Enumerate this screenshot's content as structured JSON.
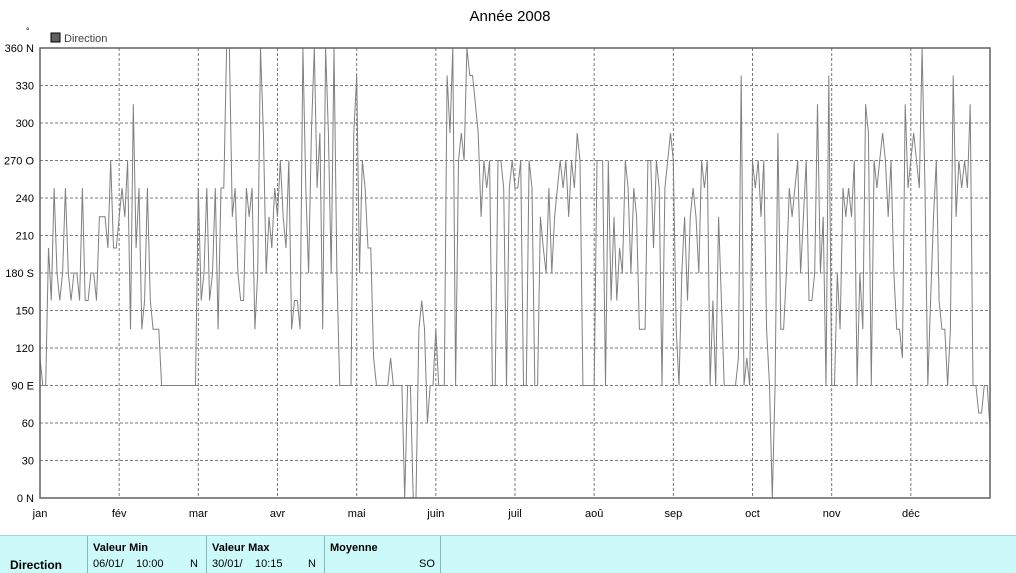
{
  "chart_data": {
    "type": "line",
    "title": "Année 2008",
    "legend": "Direction",
    "legend_placement": "top-left",
    "grid": true,
    "ylim": [
      0,
      360
    ],
    "y_ticks": [
      {
        "value": 0,
        "label": "0 N"
      },
      {
        "value": 30,
        "label": "30"
      },
      {
        "value": 60,
        "label": "60"
      },
      {
        "value": 90,
        "label": "90 E"
      },
      {
        "value": 120,
        "label": "120"
      },
      {
        "value": 150,
        "label": "150"
      },
      {
        "value": 180,
        "label": "180 S"
      },
      {
        "value": 210,
        "label": "210"
      },
      {
        "value": 240,
        "label": "240"
      },
      {
        "value": 270,
        "label": "270 O"
      },
      {
        "value": 300,
        "label": "300"
      },
      {
        "value": 330,
        "label": "330"
      },
      {
        "value": 360,
        "label": "360 N"
      }
    ],
    "x_ticks": [
      "jan",
      "fév",
      "mar",
      "avr",
      "mai",
      "juin",
      "juil",
      "aoû",
      "sep",
      "oct",
      "nov",
      "déc"
    ],
    "series": [
      {
        "name": "Direction",
        "color": "#808080",
        "values": [
          112,
          90,
          90,
          200,
          158,
          248,
          180,
          158,
          180,
          248,
          180,
          158,
          180,
          180,
          158,
          248,
          158,
          158,
          180,
          180,
          158,
          225,
          225,
          225,
          200,
          270,
          200,
          200,
          225,
          248,
          225,
          270,
          135,
          315,
          200,
          248,
          135,
          158,
          248,
          158,
          135,
          135,
          135,
          90,
          90,
          90,
          90,
          90,
          90,
          90,
          90,
          90,
          90,
          90,
          90,
          90,
          248,
          158,
          180,
          248,
          158,
          180,
          248,
          135,
          248,
          248,
          360,
          360,
          225,
          248,
          180,
          158,
          158,
          248,
          225,
          248,
          135,
          180,
          360,
          292,
          180,
          225,
          200,
          248,
          225,
          270,
          225,
          200,
          270,
          135,
          158,
          158,
          135,
          360,
          248,
          180,
          292,
          360,
          248,
          292,
          135,
          360,
          292,
          180,
          360,
          180,
          90,
          90,
          90,
          90,
          90,
          292,
          338,
          180,
          270,
          248,
          200,
          200,
          112,
          90,
          90,
          90,
          90,
          90,
          112,
          90,
          90,
          90,
          90,
          0,
          90,
          90,
          0,
          0,
          135,
          158,
          135,
          60,
          90,
          90,
          135,
          90,
          90,
          90,
          338,
          292,
          360,
          90,
          270,
          292,
          270,
          360,
          338,
          338,
          315,
          292,
          225,
          270,
          248,
          270,
          90,
          90,
          270,
          270,
          248,
          90,
          248,
          270,
          248,
          248,
          270,
          90,
          90,
          270,
          248,
          90,
          90,
          225,
          200,
          180,
          248,
          180,
          225,
          248,
          270,
          248,
          270,
          225,
          270,
          248,
          292,
          270,
          90,
          90,
          90,
          90,
          90,
          270,
          270,
          270,
          90,
          270,
          158,
          225,
          158,
          200,
          180,
          270,
          248,
          180,
          248,
          225,
          135,
          135,
          135,
          270,
          270,
          200,
          270,
          248,
          90,
          248,
          270,
          292,
          270,
          135,
          90,
          180,
          225,
          158,
          225,
          248,
          225,
          180,
          270,
          248,
          270,
          90,
          158,
          90,
          225,
          158,
          90,
          90,
          90,
          90,
          90,
          112,
          338,
          90,
          112,
          90,
          270,
          248,
          270,
          225,
          270,
          135,
          90,
          0,
          90,
          292,
          135,
          135,
          180,
          248,
          225,
          248,
          270,
          180,
          225,
          270,
          158,
          158,
          180,
          315,
          180,
          225,
          90,
          338,
          90,
          90,
          180,
          135,
          248,
          225,
          248,
          225,
          270,
          90,
          180,
          135,
          315,
          292,
          90,
          270,
          248,
          270,
          292,
          270,
          225,
          270,
          180,
          135,
          135,
          112,
          315,
          248,
          270,
          292,
          270,
          248,
          360,
          248,
          90,
          158,
          225,
          270,
          158,
          135,
          135,
          90,
          135,
          338,
          225,
          270,
          248,
          270,
          248,
          315,
          90,
          90,
          68,
          68,
          90,
          90,
          56
        ]
      }
    ]
  },
  "stats": {
    "row_label": "Direction",
    "min": {
      "header": "Valeur Min",
      "date": "06/01/",
      "time": "10:00",
      "dir": "N"
    },
    "max": {
      "header": "Valeur Max",
      "date": "30/01/",
      "time": "10:15",
      "dir": "N"
    },
    "avg": {
      "header": "Moyenne",
      "value": "SO"
    }
  }
}
